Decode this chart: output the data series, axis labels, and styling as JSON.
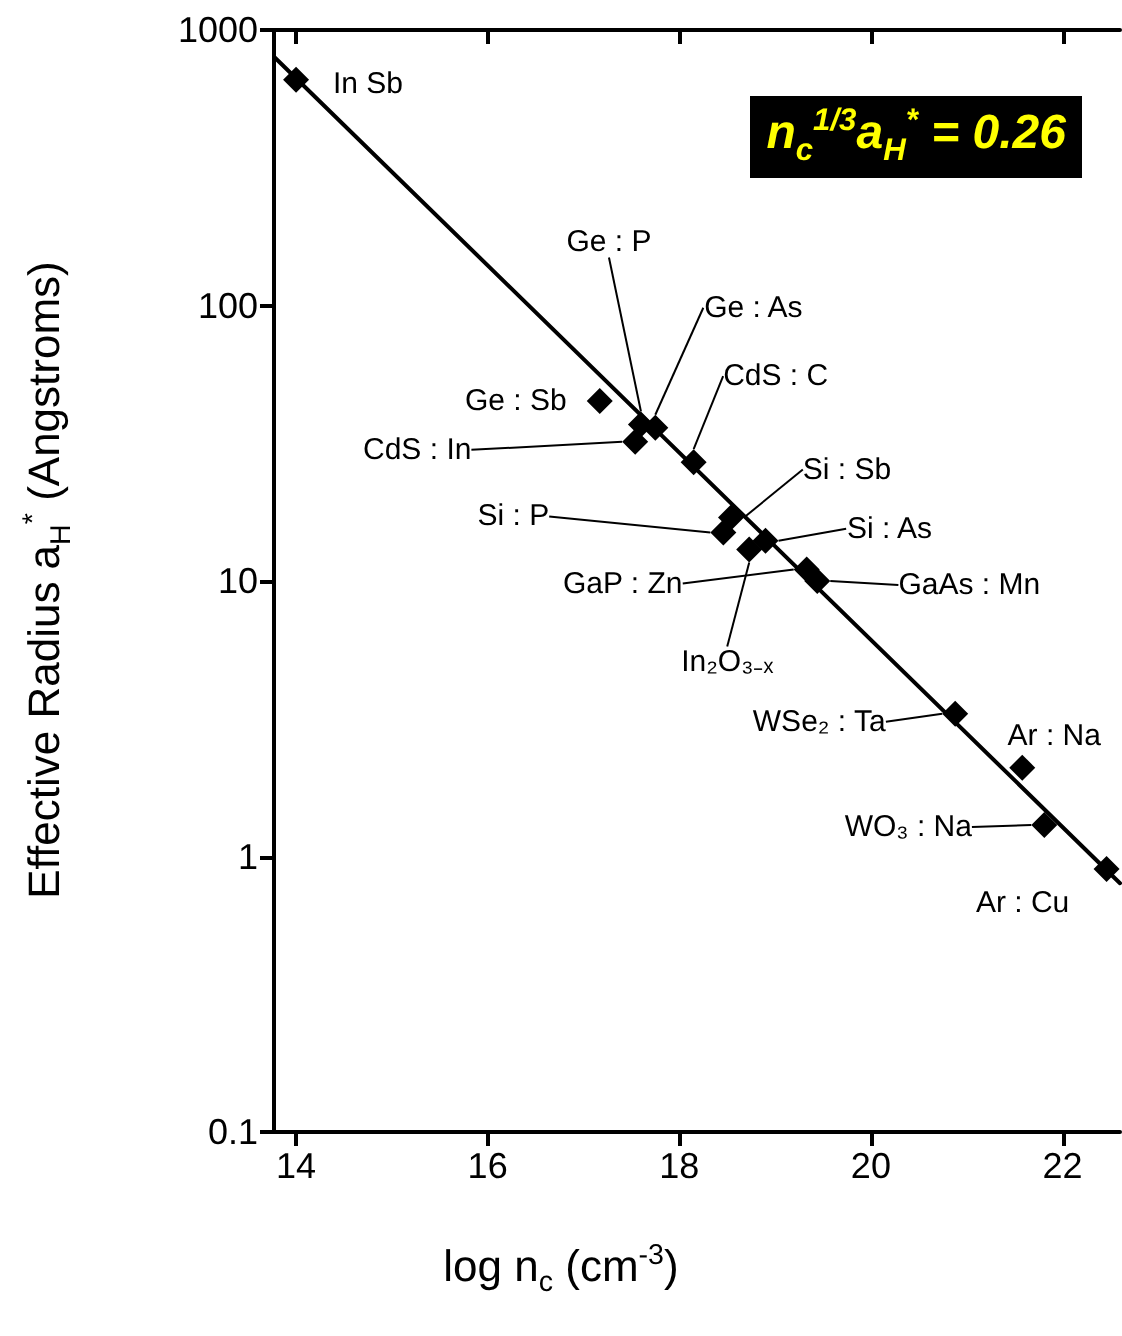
{
  "chart_data": {
    "type": "scatter",
    "xlabel": "log n$_{c}$ (cm$^{-3}$)",
    "ylabel": "Effective Radius a$_{H}$$^{*}$ (Angstroms)",
    "xlim": [
      13.77,
      22.6
    ],
    "xticks": [
      14,
      16,
      18,
      20,
      22
    ],
    "ylim": [
      0.1,
      1000
    ],
    "yticks": [
      0.1,
      1,
      10,
      100,
      1000
    ],
    "log": "y",
    "grid": false,
    "marker": "diamond",
    "series": [
      {
        "color": "#000000",
        "x": [
          14.0,
          17.17,
          17.6,
          17.75,
          17.54,
          18.15,
          18.54,
          18.46,
          18.9,
          18.73,
          19.33,
          19.44,
          20.88,
          21.58,
          21.81,
          22.46
        ],
        "values": [
          660,
          45,
          37,
          36,
          32,
          27,
          17,
          15,
          14,
          13,
          11,
          10,
          3.3,
          2.1,
          1.3,
          0.9
        ]
      },
      {
        "type": "line",
        "marker": "none",
        "color": "#000000",
        "x": [
          13.77,
          22.6
        ],
        "values": [
          800,
          0.8
        ]
      }
    ],
    "annotations": [
      "n$_{c}$$^{1/3}$a$_{H}$$^{*}$ = 0.26",
      {
        "text": "In Sb",
        "x": 14.0,
        "y": 660
      },
      {
        "text": "Ge : Sb",
        "x": 17.17,
        "y": 45
      },
      {
        "text": "Ge : P",
        "x": 17.6,
        "y": 37
      },
      {
        "text": "Ge : As",
        "x": 17.75,
        "y": 36
      },
      {
        "text": "CdS : In",
        "x": 17.54,
        "y": 32
      },
      {
        "text": "CdS : C",
        "x": 18.15,
        "y": 27
      },
      {
        "text": "Si : Sb",
        "x": 18.54,
        "y": 17
      },
      {
        "text": "Si : P",
        "x": 18.46,
        "y": 15
      },
      {
        "text": "Si : As",
        "x": 18.9,
        "y": 14
      },
      {
        "text": "In₂O₃₋ₓ",
        "x": 18.73,
        "y": 13
      },
      {
        "text": "GaP : Zn",
        "x": 19.33,
        "y": 11
      },
      {
        "text": "GaAs : Mn",
        "x": 19.44,
        "y": 10
      },
      {
        "text": "WSe₂ : Ta",
        "x": 20.88,
        "y": 3.3
      },
      {
        "text": "Ar : Na",
        "x": 21.58,
        "y": 2.1
      },
      {
        "text": "WO₃ : Na",
        "x": 21.81,
        "y": 1.3
      },
      {
        "text": "Ar : Cu",
        "x": 22.46,
        "y": 0.9
      }
    ]
  }
}
